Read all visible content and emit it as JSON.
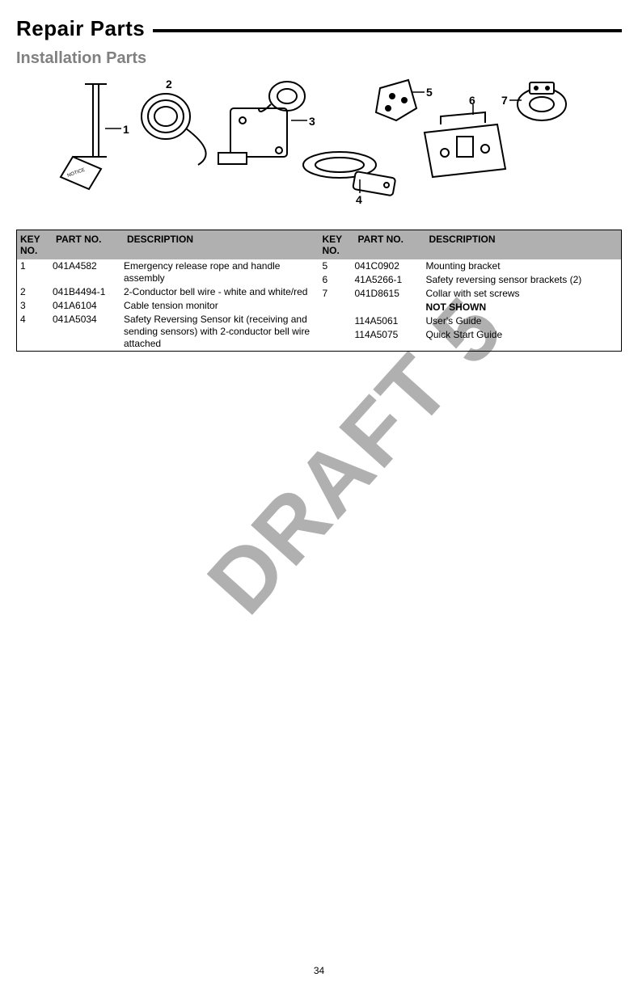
{
  "header": {
    "title": "Repair Parts",
    "subtitle": "Installation Parts"
  },
  "callouts": [
    "1",
    "2",
    "3",
    "4",
    "5",
    "6",
    "7"
  ],
  "table": {
    "headers": {
      "key": "KEY NO.",
      "part": "PART NO.",
      "desc": "DESCRIPTION"
    },
    "left": [
      {
        "key": "1",
        "part": "041A4582",
        "desc": "Emergency release rope and handle assembly"
      },
      {
        "key": "2",
        "part": "041B4494-1",
        "desc": "2-Conductor bell wire - white and white/red"
      },
      {
        "key": "3",
        "part": "041A6104",
        "desc": "Cable tension monitor"
      },
      {
        "key": "4",
        "part": "041A5034",
        "desc": "Safety Reversing Sensor kit (receiving and sending sensors) with 2-conductor bell wire attached"
      }
    ],
    "right": [
      {
        "key": "5",
        "part": "041C0902",
        "desc": "Mounting bracket"
      },
      {
        "key": "6",
        "part": "41A5266-1",
        "desc": "Safety reversing sensor brackets (2)"
      },
      {
        "key": "7",
        "part": "041D8615",
        "desc": "Collar with set screws"
      },
      {
        "key": "",
        "part": "",
        "desc": "NOT SHOWN",
        "bold": true
      },
      {
        "key": "",
        "part": "114A5061",
        "desc": "User's Guide"
      },
      {
        "key": "",
        "part": "114A5075",
        "desc": "Quick Start Guide"
      }
    ]
  },
  "watermark": "DRAFT 5",
  "page_number": "34",
  "style": {
    "header_bg": "#b0b0b0",
    "watermark_color": "#b0b0b0",
    "subtitle_color": "#808080",
    "font_family": "Arial, Helvetica, sans-serif",
    "title_fontsize": 26,
    "subtitle_fontsize": 20,
    "table_fontsize": 12
  }
}
